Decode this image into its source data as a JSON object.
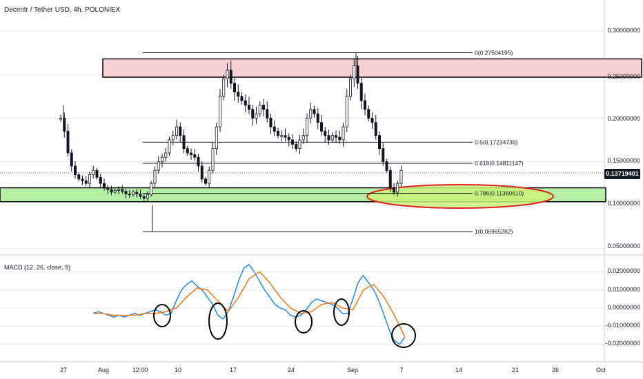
{
  "header": {
    "title": "Decentr / Tether USD, 4h, POLONIEX"
  },
  "colors": {
    "candle": "#131722",
    "resistance_fill": "#f8d0d4",
    "support_fill": "#b5f0a6",
    "ellipse_fill": "#c9f27a",
    "ellipse_stroke": "#e02020",
    "macd_line": "#2b8ee8",
    "signal_line": "#f07d1e",
    "grid": "#e6e6e6",
    "axis": "#cccccc"
  },
  "price_axis": {
    "labels": [
      "0.30000000",
      "0.25000000",
      "0.20000000",
      "0.15000000",
      "0.10000000",
      "0.05000000"
    ],
    "current_price": "0.13719401"
  },
  "macd_panel": {
    "title": "MACD (12, 26, close, 9)",
    "labels": [
      "0.02000000",
      "0.01000000",
      "0.00000000",
      "-0.01000000",
      "-0.02000000"
    ]
  },
  "x_axis": {
    "labels": [
      "27",
      "Aug",
      "12:00",
      "10",
      "17",
      "24",
      "Sep",
      "7",
      "14",
      "21",
      "26",
      "Oct"
    ]
  },
  "fib_labels": [
    "0(0.27504195)",
    "0.5(0.17234739)",
    "0.618(0.14811147)",
    "0.786(0.11360610)",
    "1(0.06965282)"
  ],
  "chart_data": [
    {
      "type": "candlestick",
      "title": "Decentr / Tether USD, 4h, POLONIEX",
      "ylim": [
        0.04,
        0.33
      ],
      "x_ticks": [
        "27",
        "Aug",
        "12:00",
        "10",
        "17",
        "24",
        "Sep",
        "7",
        "14",
        "21",
        "26",
        "Oct"
      ],
      "last_price": 0.13719401,
      "fibonacci": [
        {
          "level": "0",
          "price": 0.27504195
        },
        {
          "level": "0.5",
          "price": 0.17234739
        },
        {
          "level": "0.618",
          "price": 0.14811147
        },
        {
          "level": "0.786",
          "price": 0.1136061
        },
        {
          "level": "1",
          "price": 0.06965282
        }
      ],
      "resistance_zone": [
        0.247,
        0.268
      ],
      "support_zone": [
        0.104,
        0.12
      ],
      "price_path": [
        [
          1,
          0.2
        ],
        [
          2,
          0.185
        ],
        [
          3,
          0.16
        ],
        [
          4,
          0.145
        ],
        [
          5,
          0.135
        ],
        [
          6,
          0.13
        ],
        [
          7,
          0.128
        ],
        [
          8,
          0.125
        ],
        [
          9,
          0.135
        ],
        [
          10,
          0.14
        ],
        [
          11,
          0.132
        ],
        [
          12,
          0.125
        ],
        [
          13,
          0.12
        ],
        [
          14,
          0.118
        ],
        [
          15,
          0.115
        ],
        [
          16,
          0.117
        ],
        [
          17,
          0.118
        ],
        [
          18,
          0.116
        ],
        [
          19,
          0.113
        ],
        [
          20,
          0.112
        ],
        [
          21,
          0.115
        ],
        [
          22,
          0.113
        ],
        [
          23,
          0.11
        ],
        [
          24,
          0.108
        ],
        [
          25,
          0.112
        ],
        [
          26,
          0.125
        ],
        [
          27,
          0.14
        ],
        [
          28,
          0.15
        ],
        [
          29,
          0.155
        ],
        [
          30,
          0.16
        ],
        [
          31,
          0.175
        ],
        [
          32,
          0.18
        ],
        [
          33,
          0.19
        ],
        [
          34,
          0.18
        ],
        [
          35,
          0.165
        ],
        [
          36,
          0.16
        ],
        [
          37,
          0.158
        ],
        [
          38,
          0.155
        ],
        [
          39,
          0.145
        ],
        [
          40,
          0.13
        ],
        [
          41,
          0.125
        ],
        [
          42,
          0.14
        ],
        [
          43,
          0.165
        ],
        [
          44,
          0.19
        ],
        [
          45,
          0.225
        ],
        [
          46,
          0.245
        ],
        [
          47,
          0.255
        ],
        [
          48,
          0.24
        ],
        [
          49,
          0.23
        ],
        [
          50,
          0.225
        ],
        [
          51,
          0.22
        ],
        [
          52,
          0.215
        ],
        [
          53,
          0.21
        ],
        [
          54,
          0.2
        ],
        [
          55,
          0.205
        ],
        [
          56,
          0.215
        ],
        [
          57,
          0.21
        ],
        [
          58,
          0.2
        ],
        [
          59,
          0.19
        ],
        [
          60,
          0.185
        ],
        [
          61,
          0.18
        ],
        [
          62,
          0.18
        ],
        [
          63,
          0.178
        ],
        [
          64,
          0.175
        ],
        [
          65,
          0.17
        ],
        [
          66,
          0.165
        ],
        [
          67,
          0.175
        ],
        [
          68,
          0.18
        ],
        [
          69,
          0.2
        ],
        [
          70,
          0.21
        ],
        [
          71,
          0.205
        ],
        [
          72,
          0.195
        ],
        [
          73,
          0.185
        ],
        [
          74,
          0.18
        ],
        [
          75,
          0.175
        ],
        [
          76,
          0.18
        ],
        [
          77,
          0.178
        ],
        [
          78,
          0.175
        ],
        [
          79,
          0.19
        ],
        [
          80,
          0.225
        ],
        [
          81,
          0.245
        ],
        [
          82,
          0.26
        ],
        [
          83,
          0.24
        ],
        [
          84,
          0.22
        ],
        [
          85,
          0.21
        ],
        [
          86,
          0.2
        ],
        [
          87,
          0.195
        ],
        [
          88,
          0.18
        ],
        [
          89,
          0.165
        ],
        [
          90,
          0.15
        ],
        [
          91,
          0.14
        ],
        [
          92,
          0.12
        ],
        [
          93,
          0.115
        ],
        [
          94,
          0.125
        ],
        [
          95,
          0.14
        ]
      ]
    },
    {
      "type": "line",
      "title": "MACD (12, 26, close, 9)",
      "ylim": [
        -0.028,
        0.027
      ],
      "series": [
        {
          "name": "MACD",
          "points": [
            [
              1,
              -0.003
            ],
            [
              2,
              -0.002
            ],
            [
              3,
              -0.003
            ],
            [
              4,
              -0.004
            ],
            [
              5,
              -0.005
            ],
            [
              6,
              -0.004
            ],
            [
              7,
              -0.005
            ],
            [
              8,
              -0.004
            ],
            [
              9,
              -0.003
            ],
            [
              10,
              -0.004
            ],
            [
              11,
              -0.003
            ],
            [
              12,
              -0.002
            ],
            [
              13,
              -0.001
            ],
            [
              14,
              -0.002
            ],
            [
              15,
              -0.004
            ],
            [
              16,
              -0.003
            ],
            [
              17,
              0.004
            ],
            [
              18,
              0.01
            ],
            [
              19,
              0.013
            ],
            [
              20,
              0.015
            ],
            [
              21,
              0.012
            ],
            [
              22,
              0.01
            ],
            [
              23,
              0.006
            ],
            [
              24,
              0.002
            ],
            [
              25,
              -0.004
            ],
            [
              26,
              -0.006
            ],
            [
              27,
              -0.002
            ],
            [
              28,
              0.006
            ],
            [
              29,
              0.015
            ],
            [
              30,
              0.022
            ],
            [
              31,
              0.024
            ],
            [
              32,
              0.02
            ],
            [
              33,
              0.015
            ],
            [
              34,
              0.01
            ],
            [
              35,
              0.006
            ],
            [
              36,
              0.002
            ],
            [
              37,
              0.0
            ],
            [
              38,
              -0.001
            ],
            [
              39,
              -0.004
            ],
            [
              40,
              -0.005
            ],
            [
              41,
              -0.004
            ],
            [
              42,
              -0.001
            ],
            [
              43,
              0.003
            ],
            [
              44,
              0.005
            ],
            [
              45,
              0.004
            ],
            [
              46,
              0.003
            ],
            [
              47,
              0.002
            ],
            [
              48,
              0.0
            ],
            [
              49,
              -0.003
            ],
            [
              50,
              -0.003
            ],
            [
              51,
              0.005
            ],
            [
              52,
              0.014
            ],
            [
              53,
              0.018
            ],
            [
              54,
              0.014
            ],
            [
              55,
              0.01
            ],
            [
              56,
              0.004
            ],
            [
              57,
              -0.004
            ],
            [
              58,
              -0.012
            ],
            [
              59,
              -0.018
            ],
            [
              60,
              -0.02
            ],
            [
              61,
              -0.016
            ]
          ]
        },
        {
          "name": "Signal",
          "points": [
            [
              1,
              -0.003
            ],
            [
              3,
              -0.003
            ],
            [
              5,
              -0.004
            ],
            [
              7,
              -0.004
            ],
            [
              9,
              -0.004
            ],
            [
              11,
              -0.003
            ],
            [
              13,
              -0.003
            ],
            [
              15,
              -0.002
            ],
            [
              17,
              0.0
            ],
            [
              19,
              0.006
            ],
            [
              21,
              0.011
            ],
            [
              23,
              0.01
            ],
            [
              25,
              0.004
            ],
            [
              27,
              -0.002
            ],
            [
              29,
              0.006
            ],
            [
              31,
              0.016
            ],
            [
              33,
              0.02
            ],
            [
              35,
              0.014
            ],
            [
              37,
              0.006
            ],
            [
              39,
              0.0
            ],
            [
              41,
              -0.003
            ],
            [
              43,
              -0.002
            ],
            [
              45,
              0.002
            ],
            [
              47,
              0.003
            ],
            [
              49,
              0.0
            ],
            [
              51,
              -0.001
            ],
            [
              53,
              0.01
            ],
            [
              55,
              0.013
            ],
            [
              57,
              0.006
            ],
            [
              59,
              -0.004
            ],
            [
              61,
              -0.016
            ]
          ]
        }
      ]
    }
  ]
}
